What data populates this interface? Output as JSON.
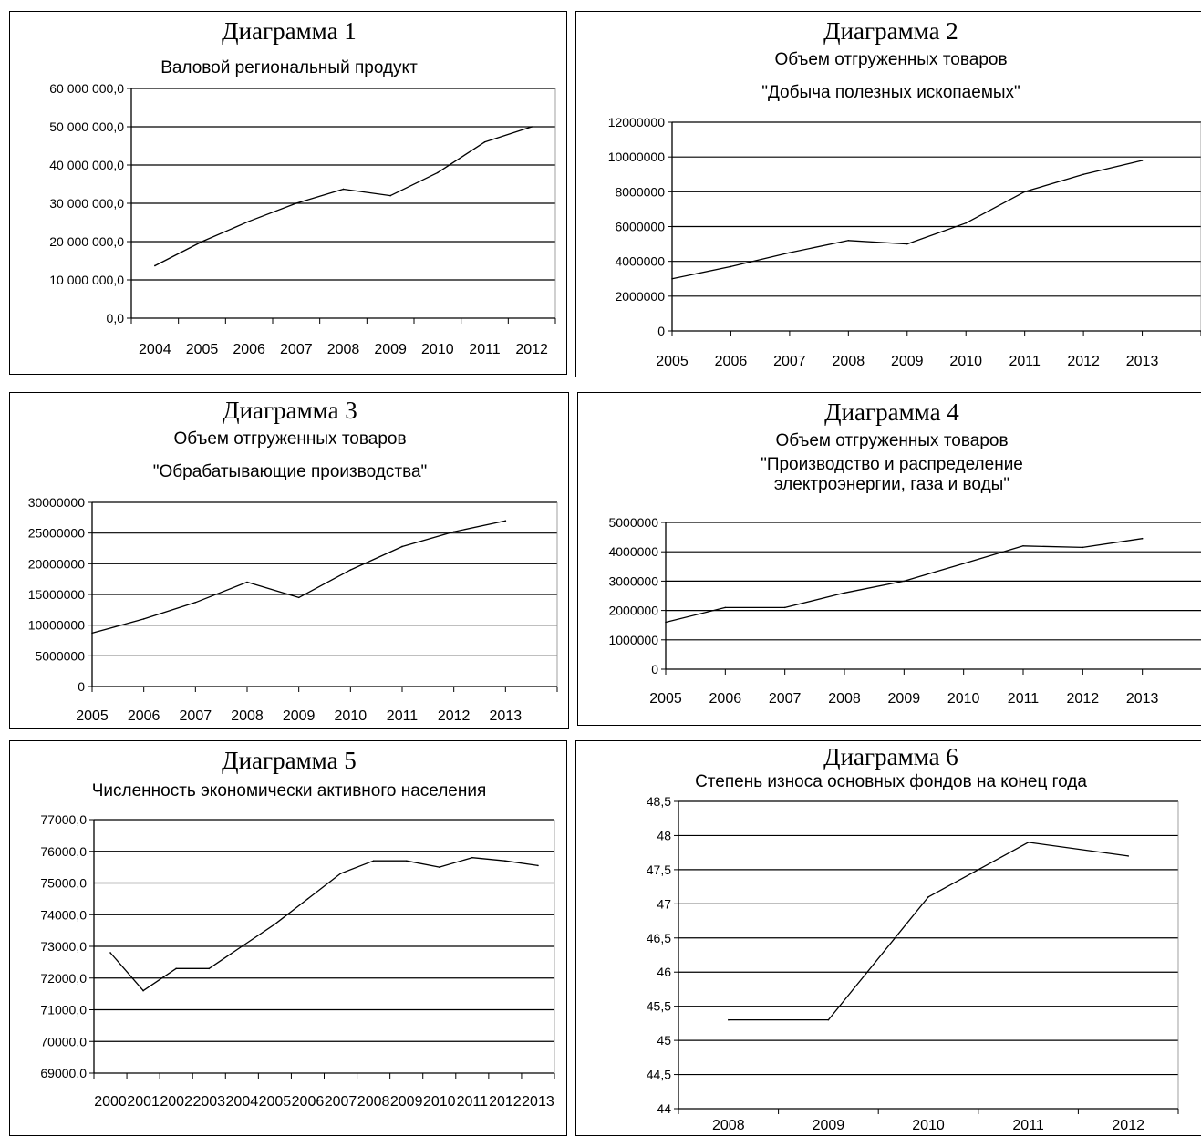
{
  "charts": [
    {
      "title": "Диаграмма 1",
      "subtitle_lines": [
        "Валовой  региональный продукт"
      ],
      "chart_data": {
        "type": "line",
        "title": "Диаграмма 1",
        "subtitle": "Валовой  региональный продукт",
        "xlabel": "",
        "ylabel": "",
        "categories": [
          "2004",
          "2005",
          "2006",
          "2007",
          "2008",
          "2009",
          "2010",
          "2011",
          "2012"
        ],
        "values": [
          13700000,
          20000000,
          25300000,
          30000000,
          33700000,
          32000000,
          38000000,
          46000000,
          50000000
        ],
        "ylim": [
          0,
          60000000
        ],
        "yticks": [
          "0,0",
          "10 000 000,0",
          "20 000 000,0",
          "30 000 000,0",
          "40 000 000,0",
          "50 000 000,0",
          "60 000 000,0"
        ],
        "grid": true,
        "legend": "none"
      }
    },
    {
      "title": "Диаграмма 2",
      "subtitle_lines": [
        "Объем отгруженных товаров",
        "\"Добыча полезных ископаемых\""
      ],
      "chart_data": {
        "type": "line",
        "title": "Диаграмма 2",
        "subtitle": "Объем отгруженных товаров \"Добыча полезных ископаемых\"",
        "xlabel": "",
        "ylabel": "",
        "categories": [
          "2005",
          "2006",
          "2007",
          "2008",
          "2009",
          "2010",
          "2011",
          "2012",
          "2013"
        ],
        "values": [
          3000000,
          3700000,
          4500000,
          5200000,
          5000000,
          6200000,
          8000000,
          9000000,
          9800000
        ],
        "ylim": [
          0,
          12000000
        ],
        "yticks": [
          "0",
          "2000000",
          "4000000",
          "6000000",
          "8000000",
          "10000000",
          "12000000"
        ],
        "grid": true,
        "legend": "none"
      }
    },
    {
      "title": "Диаграмма 3",
      "subtitle_lines": [
        "Объем отгруженных товаров",
        "\"Обрабатывающие производства\""
      ],
      "chart_data": {
        "type": "line",
        "title": "Диаграмма 3",
        "subtitle": "Объем отгруженных товаров \"Обрабатывающие производства\"",
        "xlabel": "",
        "ylabel": "",
        "categories": [
          "2005",
          "2006",
          "2007",
          "2008",
          "2009",
          "2010",
          "2011",
          "2012",
          "2013"
        ],
        "values": [
          8700000,
          11000000,
          13700000,
          17000000,
          14500000,
          19000000,
          22800000,
          25200000,
          27000000
        ],
        "ylim": [
          0,
          30000000
        ],
        "yticks": [
          "0",
          "5000000",
          "10000000",
          "15000000",
          "20000000",
          "25000000",
          "30000000"
        ],
        "grid": true,
        "legend": "none"
      }
    },
    {
      "title": "Диаграмма  4",
      "subtitle_lines": [
        "Объем отгруженных товаров",
        "\"Производство и распределение",
        "электроэнергии, газа и воды\""
      ],
      "chart_data": {
        "type": "line",
        "title": "Диаграмма  4",
        "subtitle": "Объем отгруженных товаров \"Производство и распределение электроэнергии, газа и воды\"",
        "xlabel": "",
        "ylabel": "",
        "categories": [
          "2005",
          "2006",
          "2007",
          "2008",
          "2009",
          "2010",
          "2011",
          "2012",
          "2013"
        ],
        "values": [
          1600000,
          2100000,
          2100000,
          2600000,
          3000000,
          3600000,
          4200000,
          4150000,
          4450000
        ],
        "ylim": [
          0,
          5000000
        ],
        "yticks": [
          "0",
          "1000000",
          "2000000",
          "3000000",
          "4000000",
          "5000000"
        ],
        "grid": true,
        "legend": "none"
      }
    },
    {
      "title": "Диаграмма 5",
      "subtitle_lines": [
        "Численность экономически активного населения"
      ],
      "chart_data": {
        "type": "line",
        "title": "Диаграмма 5",
        "subtitle": "Численность экономически активного населения",
        "xlabel": "",
        "ylabel": "",
        "categories": [
          "2000",
          "2001",
          "2002",
          "2003",
          "2004",
          "2005",
          "2006",
          "2007",
          "2008",
          "2009",
          "2010",
          "2011",
          "2012",
          "2013"
        ],
        "values": [
          72800,
          71600,
          72300,
          72300,
          73000,
          73700,
          74500,
          75300,
          75700,
          75700,
          75500,
          75800,
          75700,
          75550
        ],
        "ylim": [
          69000,
          77000
        ],
        "yticks": [
          "69000,0",
          "70000,0",
          "71000,0",
          "72000,0",
          "73000,0",
          "74000,0",
          "75000,0",
          "76000,0",
          "77000,0"
        ],
        "grid": true,
        "legend": "none"
      }
    },
    {
      "title": "Диаграмма 6",
      "subtitle_lines": [
        "Степень износа основных фондов на конец года"
      ],
      "chart_data": {
        "type": "line",
        "title": "Диаграмма 6",
        "subtitle": "Степень износа основных фондов на конец года",
        "xlabel": "",
        "ylabel": "",
        "categories": [
          "2008",
          "2009",
          "2010",
          "2011",
          "2012"
        ],
        "values": [
          45.3,
          45.3,
          47.1,
          47.9,
          47.7
        ],
        "ylim": [
          44,
          48.5
        ],
        "yticks": [
          "44",
          "44,5",
          "45",
          "45,5",
          "46",
          "46,5",
          "47",
          "47,5",
          "48",
          "48,5"
        ],
        "grid": true,
        "legend": "none"
      }
    }
  ]
}
